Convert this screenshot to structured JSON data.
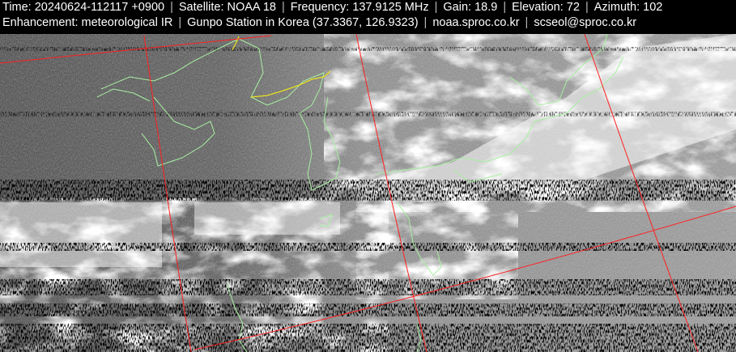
{
  "header": {
    "line1": [
      "Time: 20240624-112117 +0900",
      "Satellite: NOAA 18",
      "Frequency: 137.9125 MHz",
      "Gain: 18.9",
      "Elevation: 72",
      "Azimuth: 102"
    ],
    "line2": [
      "Enhancement: meteorological IR",
      "Gunpo Station in Korea (37.3367, 126.9323)",
      "noaa.sproc.co.kr",
      "scseol@sproc.co.kr"
    ],
    "separator": "|"
  },
  "image": {
    "colors": {
      "grid": "#ff2020",
      "coastline": "#a8f0a0",
      "border": "#e8e020",
      "background": "#000000"
    }
  }
}
